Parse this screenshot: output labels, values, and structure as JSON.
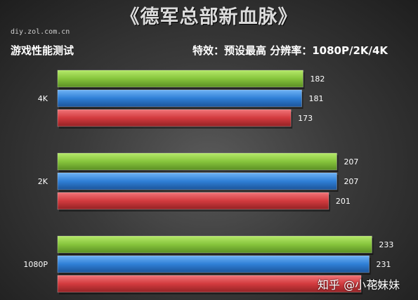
{
  "header": {
    "title": "《德军总部新血脉》",
    "source": "diy.zol.com.cn",
    "subtitle": "游戏性能测试",
    "settings": "特效：预设最高  分辨率：1080P/2K/4K"
  },
  "watermark": "知乎 @小花妹妹",
  "colors": {
    "green": "#86c43c",
    "blue": "#2f7fd6",
    "red": "#d23a3e"
  },
  "chart_data": {
    "type": "bar",
    "orientation": "horizontal",
    "categories": [
      "4K",
      "2K",
      "1080P"
    ],
    "series": [
      {
        "values": [
          182,
          207,
          233
        ],
        "color": "#86c43c"
      },
      {
        "values": [
          181,
          207,
          231
        ],
        "color": "#2f7fd6"
      },
      {
        "values": [
          173,
          201,
          225
        ],
        "color": "#d23a3e"
      }
    ],
    "data_labels": [
      [
        "182",
        "181",
        "173"
      ],
      [
        "207",
        "207",
        "201"
      ],
      [
        "233",
        "231",
        "225"
      ]
    ],
    "xlim": [
      0,
      240
    ],
    "grid": false,
    "legend": "none"
  }
}
